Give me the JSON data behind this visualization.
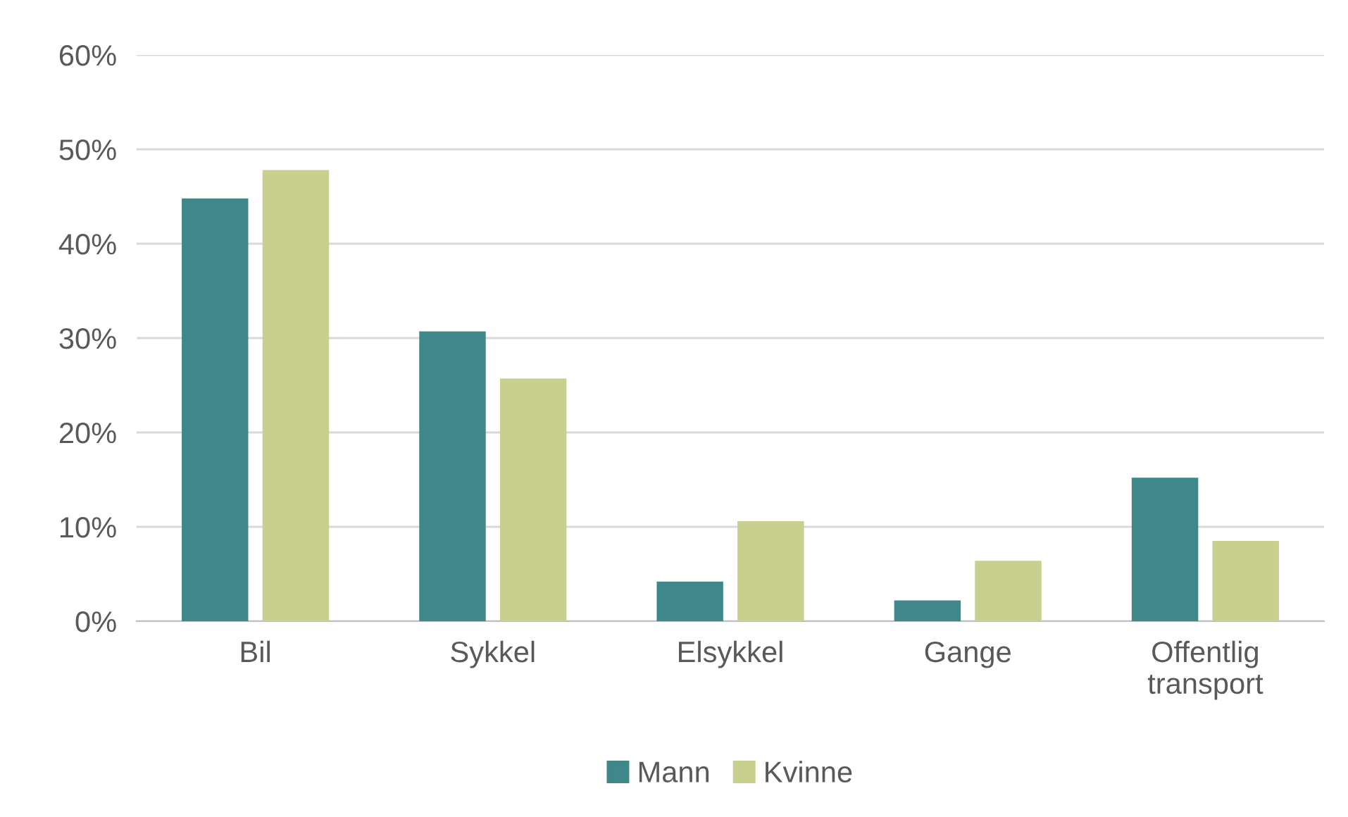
{
  "chart_data": {
    "type": "bar",
    "categories": [
      "Bil",
      "Sykkel",
      "Elsykkel",
      "Gange",
      "Offentlig\ntransport"
    ],
    "series": [
      {
        "name": "Mann",
        "color": "#3f8789",
        "values": [
          44.8,
          30.7,
          4.2,
          2.2,
          15.2
        ]
      },
      {
        "name": "Kvinne",
        "color": "#c8cf8f",
        "values": [
          47.8,
          25.7,
          10.6,
          6.4,
          8.5
        ]
      }
    ],
    "ylim": [
      0,
      60
    ],
    "yticks": [
      {
        "value": 0,
        "label": "0%"
      },
      {
        "value": 10,
        "label": "10%"
      },
      {
        "value": 20,
        "label": "20%"
      },
      {
        "value": 30,
        "label": "30%"
      },
      {
        "value": 40,
        "label": "40%"
      },
      {
        "value": 50,
        "label": "50%"
      },
      {
        "value": 60,
        "label": "60%"
      }
    ],
    "grid": "y",
    "legend": "bottom"
  }
}
